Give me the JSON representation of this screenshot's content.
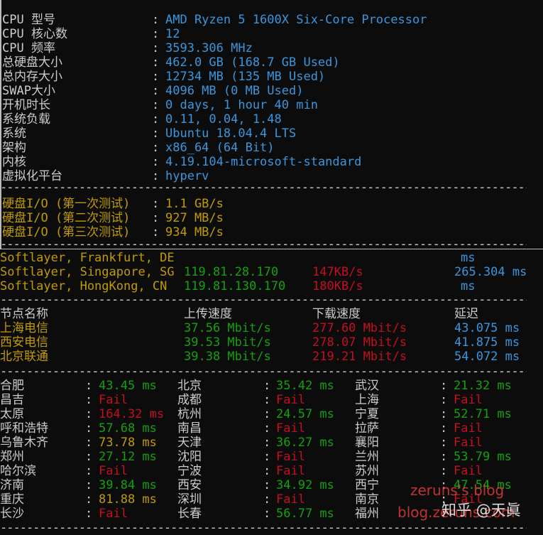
{
  "system_info": [
    {
      "label": "CPU 型号",
      "value": "AMD Ryzen 5 1600X Six-Core Processor"
    },
    {
      "label": "CPU 核心数",
      "value": "12"
    },
    {
      "label": "CPU 频率",
      "value": "3593.306 MHz"
    },
    {
      "label": "总硬盘大小",
      "value": "462.0 GB (168.7 GB Used)"
    },
    {
      "label": "总内存大小",
      "value": "12734 MB (135 MB Used)"
    },
    {
      "label": "SWAP大小",
      "value": "4096 MB (0 MB Used)"
    },
    {
      "label": "开机时长",
      "value": "0 days, 1 hour 40 min"
    },
    {
      "label": "系统负载",
      "value": "0.11, 0.04, 1.48"
    },
    {
      "label": "系统",
      "value": "Ubuntu 18.04.4 LTS"
    },
    {
      "label": "架构",
      "value": "x86_64 (64 Bit)"
    },
    {
      "label": "内核",
      "value": "4.19.104-microsoft-standard"
    },
    {
      "label": "虚拟化平台",
      "value": "hyperv"
    }
  ],
  "disk_io": [
    {
      "label": "硬盘I/O (第一次测试)",
      "value": "1.1 GB/s"
    },
    {
      "label": "硬盘I/O (第二次测试)",
      "value": "927 MB/s"
    },
    {
      "label": "硬盘I/O (第三次测试)",
      "value": "934 MB/s"
    }
  ],
  "softlayer": [
    {
      "node": "Softlayer, Frankfurt, DE",
      "ip": "",
      "speed": "",
      "latency": "ms"
    },
    {
      "node": "Softlayer, Singapore, SG",
      "ip": "119.81.28.170",
      "speed": "147KB/s",
      "latency": "265.304 ms"
    },
    {
      "node": "Softlayer, HongKong, CN",
      "ip": "119.81.130.170",
      "speed": "180KB/s",
      "latency": "ms"
    }
  ],
  "speed_header": {
    "node": "节点名称",
    "upload": "上传速度",
    "download": "下载速度",
    "latency": "延迟"
  },
  "speed_rows": [
    {
      "node": "上海电信",
      "upload": "37.56 Mbit/s",
      "download": "277.60 Mbit/s",
      "latency": "43.075 ms"
    },
    {
      "node": "西安电信",
      "upload": "39.53 Mbit/s",
      "download": "278.07 Mbit/s",
      "latency": "41.875 ms"
    },
    {
      "node": "北京联通",
      "upload": "39.38 Mbit/s",
      "download": "219.21 Mbit/s",
      "latency": "54.072 ms"
    }
  ],
  "ping_rows": [
    [
      {
        "city": "合肥",
        "value": "43.45 ms",
        "status": "good"
      },
      {
        "city": "北京",
        "value": "35.42 ms",
        "status": "good"
      },
      {
        "city": "武汉",
        "value": "21.32 ms",
        "status": "good"
      }
    ],
    [
      {
        "city": "昌吉",
        "value": "Fail",
        "status": "fail"
      },
      {
        "city": "成都",
        "value": "Fail",
        "status": "fail"
      },
      {
        "city": "上海",
        "value": "Fail",
        "status": "fail"
      }
    ],
    [
      {
        "city": "太原",
        "value": "164.32 ms",
        "status": "fail"
      },
      {
        "city": "杭州",
        "value": "24.57 ms",
        "status": "good"
      },
      {
        "city": "宁夏",
        "value": "52.71 ms",
        "status": "good"
      }
    ],
    [
      {
        "city": "呼和浩特",
        "value": "57.68 ms",
        "status": "good"
      },
      {
        "city": "南昌",
        "value": "Fail",
        "status": "fail"
      },
      {
        "city": "拉萨",
        "value": "Fail",
        "status": "fail"
      }
    ],
    [
      {
        "city": "乌鲁木齐",
        "value": "73.78 ms",
        "status": "warn"
      },
      {
        "city": "天津",
        "value": "36.27 ms",
        "status": "good"
      },
      {
        "city": "襄阳",
        "value": "Fail",
        "status": "fail"
      }
    ],
    [
      {
        "city": "郑州",
        "value": "27.12 ms",
        "status": "good"
      },
      {
        "city": "沈阳",
        "value": "Fail",
        "status": "fail"
      },
      {
        "city": "兰州",
        "value": "53.79 ms",
        "status": "good"
      }
    ],
    [
      {
        "city": "哈尔滨",
        "value": "Fail",
        "status": "fail"
      },
      {
        "city": "宁波",
        "value": "Fail",
        "status": "fail"
      },
      {
        "city": "苏州",
        "value": "Fail",
        "status": "fail"
      }
    ],
    [
      {
        "city": "济南",
        "value": "39.84 ms",
        "status": "good"
      },
      {
        "city": "西安",
        "value": "34.92 ms",
        "status": "good"
      },
      {
        "city": "西宁",
        "value": "47.54 ms",
        "status": "good"
      }
    ],
    [
      {
        "city": "重庆",
        "value": "81.88 ms",
        "status": "warn"
      },
      {
        "city": "深圳",
        "value": "Fail",
        "status": "fail"
      },
      {
        "city": "南京",
        "value": "Fail",
        "status": "fail"
      }
    ],
    [
      {
        "city": "长沙",
        "value": "Fail",
        "status": "fail"
      },
      {
        "city": "长春",
        "value": "56.77 ms",
        "status": "good"
      },
      {
        "city": "福州",
        "value": "",
        "status": "good"
      }
    ]
  ],
  "colon": ":",
  "dashes": "--------------------------------------------------------------------------------------------------",
  "watermark": {
    "site_top": "zeruns's blog",
    "site_bottom": "blog.zeruns.com",
    "zhihu": "知乎 @天眞"
  },
  "colors": {
    "background": "#0c0c0c",
    "label": "#cccccc",
    "cyan": "#3a96dd",
    "yellow": "#c19c00",
    "green": "#13a10e",
    "red": "#c50f1f"
  }
}
